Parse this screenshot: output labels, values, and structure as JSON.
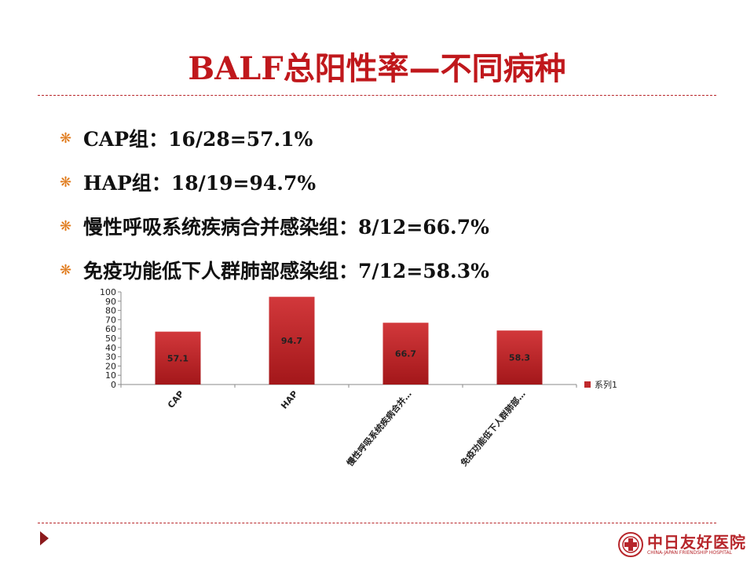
{
  "slide": {
    "title_latin": "BALF",
    "title_cn": "总阳性率—不同病种",
    "bullet_icon": "asterisk-bullet-icon",
    "bullets": [
      "CAP组：16/28=57.1%",
      "HAP组：18/19=94.7%",
      "慢性呼吸系统疾病合并感染组：8/12=66.7%",
      "免疫功能低下人群肺部感染组：7/12=58.3%"
    ]
  },
  "chart_data": {
    "type": "bar",
    "categories": [
      "CAP",
      "HAP",
      "慢性呼吸系统疾病合并…",
      "免疫功能低下人群肺部…"
    ],
    "series": [
      {
        "name": "系列1",
        "values": [
          57.1,
          94.7,
          66.7,
          58.3
        ]
      }
    ],
    "ylim": [
      0,
      100
    ],
    "yticks": [
      "0",
      "10",
      "20",
      "30",
      "40",
      "50",
      "60",
      "70",
      "80",
      "90",
      "100"
    ],
    "legend": "right",
    "grid": false,
    "bar_color": "#c0292c",
    "data_labels": [
      "57.1",
      "94.7",
      "66.7",
      "58.3"
    ]
  },
  "footer": {
    "logo_cn": "中日友好医院",
    "logo_en": "CHINA-JAPAN FRIENDSHIP HOSPITAL",
    "logo_icon": "hospital-seal-icon",
    "nav_icon": "triangle-right-icon"
  },
  "colors": {
    "title": "#c0181c",
    "accent": "#b8262a",
    "bullet": "#e07b1c"
  }
}
